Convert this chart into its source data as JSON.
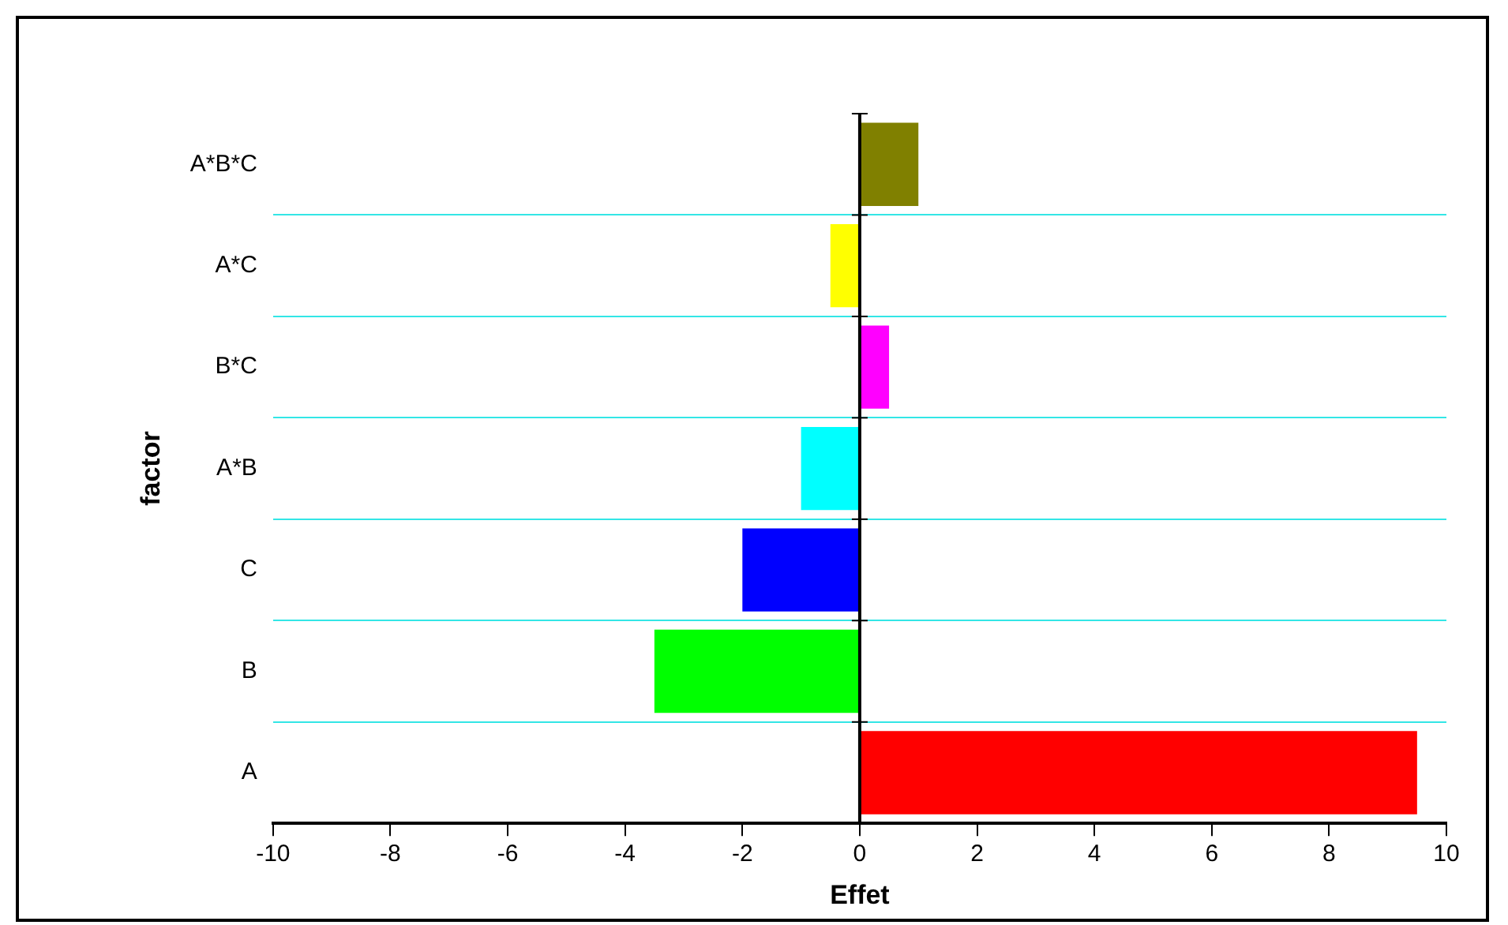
{
  "chart_data": {
    "type": "bar",
    "orientation": "horizontal",
    "xlabel": "Effet",
    "ylabel": "factor",
    "categories": [
      "A*B*C",
      "A*C",
      "B*C",
      "A*B",
      "C",
      "B",
      "A"
    ],
    "values": [
      1.0,
      -0.5,
      0.5,
      -1.0,
      -2.0,
      -3.5,
      9.5
    ],
    "colors": [
      "#808000",
      "#ffff00",
      "#ff00ff",
      "#00ffff",
      "#0000ff",
      "#00ff00",
      "#ff0000"
    ],
    "xlim": [
      -10,
      10
    ],
    "xticks": [
      -10,
      -8,
      -6,
      -4,
      -2,
      0,
      2,
      4,
      6,
      8,
      10
    ],
    "grid": "y",
    "legend": false
  }
}
